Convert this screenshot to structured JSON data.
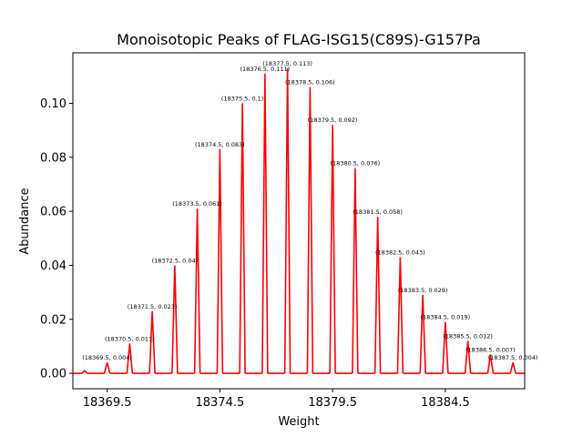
{
  "chart_data": {
    "type": "line",
    "title": "Monoisotopic Peaks of FLAG-ISG15(C89S)-G157Pa",
    "xlabel": "Weight",
    "ylabel": "Abundance",
    "xlim": [
      18367.98,
      18388.02
    ],
    "ylim": [
      -0.0057,
      0.1187
    ],
    "x_ticks": [
      18369.5,
      18374.5,
      18379.5,
      18384.5
    ],
    "x_tick_labels": [
      "18369.5",
      "18374.5",
      "18379.5",
      "18384.5"
    ],
    "y_ticks": [
      0.0,
      0.02,
      0.04,
      0.06,
      0.08,
      0.1
    ],
    "y_tick_labels": [
      "0.00",
      "0.02",
      "0.04",
      "0.06",
      "0.08",
      "0.10"
    ],
    "line_color": "#ff0000",
    "grid": false,
    "series": [
      {
        "peaks": [
          {
            "x": 18368.5,
            "y": 0.001,
            "label": ""
          },
          {
            "x": 18369.5,
            "y": 0.004,
            "label": "(18369.5, 0.004)"
          },
          {
            "x": 18370.5,
            "y": 0.011,
            "label": "(18370.5, 0.011)"
          },
          {
            "x": 18371.5,
            "y": 0.023,
            "label": "(18371.5, 0.023)"
          },
          {
            "x": 18372.5,
            "y": 0.04,
            "label": "(18372.5, 0.04)"
          },
          {
            "x": 18373.5,
            "y": 0.061,
            "label": "(18373.5, 0.061)"
          },
          {
            "x": 18374.5,
            "y": 0.083,
            "label": "(18374.5, 0.083)"
          },
          {
            "x": 18375.5,
            "y": 0.1,
            "label": "(18375.5, 0.1)"
          },
          {
            "x": 18376.5,
            "y": 0.111,
            "label": "(18376.5, 0.111)"
          },
          {
            "x": 18377.5,
            "y": 0.113,
            "label": "(18377.5, 0.113)"
          },
          {
            "x": 18378.5,
            "y": 0.106,
            "label": "(18378.5, 0.106)"
          },
          {
            "x": 18379.5,
            "y": 0.092,
            "label": "(18379.5, 0.092)"
          },
          {
            "x": 18380.5,
            "y": 0.076,
            "label": "(18380.5, 0.076)"
          },
          {
            "x": 18381.5,
            "y": 0.058,
            "label": "(18381.5, 0.058)"
          },
          {
            "x": 18382.5,
            "y": 0.043,
            "label": "(18382.5, 0.043)"
          },
          {
            "x": 18383.5,
            "y": 0.029,
            "label": "(18383.5, 0.029)"
          },
          {
            "x": 18384.5,
            "y": 0.019,
            "label": "(18384.5, 0.019)"
          },
          {
            "x": 18385.5,
            "y": 0.012,
            "label": "(18385.5, 0.012)"
          },
          {
            "x": 18386.5,
            "y": 0.007,
            "label": "(18386.5, 0.007)"
          },
          {
            "x": 18387.5,
            "y": 0.004,
            "label": "(18387.5, 0.004)"
          }
        ]
      }
    ]
  }
}
